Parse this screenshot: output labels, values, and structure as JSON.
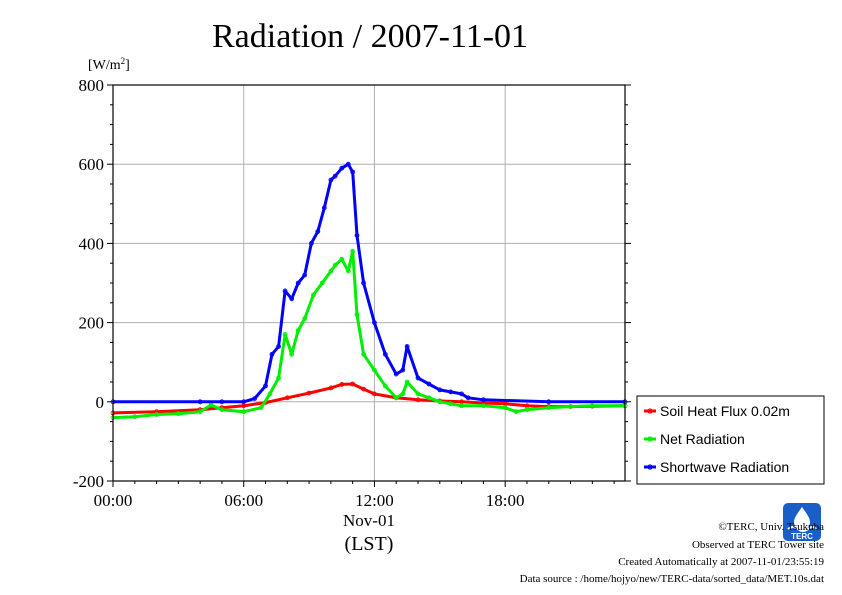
{
  "chart_data": {
    "type": "line",
    "title": "Radiation / 2007-11-01",
    "ylabel_unit": "[W/m",
    "ylabel_unit_sup": "2",
    "ylabel_unit_close": "]",
    "ylim": [
      -200,
      800
    ],
    "yticks": [
      "800",
      "600",
      "400",
      "200",
      "0",
      "-200"
    ],
    "xlim": [
      0,
      23.5
    ],
    "xticks": [
      "00:00",
      "06:00",
      "12:00",
      "18:00"
    ],
    "xlabel_date": "Nov-01",
    "xlabel": "(LST)",
    "grid": true,
    "legend_position": "right",
    "series": [
      {
        "name": "Soil Heat Flux 0.02m",
        "color": "#ff0000",
        "x": [
          0,
          2,
          4,
          5,
          6,
          7,
          8,
          9,
          10,
          10.5,
          11,
          11.5,
          12,
          13,
          14,
          15,
          16,
          17,
          18,
          19,
          20,
          21,
          22,
          23.5
        ],
        "y": [
          -28,
          -25,
          -20,
          -15,
          -10,
          -2,
          10,
          22,
          35,
          44,
          45,
          32,
          20,
          10,
          5,
          2,
          0,
          -3,
          -5,
          -10,
          -12,
          -12,
          -11,
          -10
        ]
      },
      {
        "name": "Net Radiation",
        "color": "#00ee00",
        "x": [
          0,
          1,
          2,
          3,
          4,
          4.5,
          5,
          6,
          6.8,
          7.2,
          7.6,
          7.9,
          8.2,
          8.5,
          8.8,
          9.2,
          9.6,
          10.0,
          10.2,
          10.5,
          10.8,
          11.0,
          11.2,
          11.5,
          12.0,
          12.5,
          13.0,
          13.3,
          13.5,
          14.0,
          14.5,
          15.0,
          15.5,
          16.0,
          17.0,
          18.0,
          18.5,
          19.0,
          20.0,
          21.0,
          22.0,
          23.5
        ],
        "y": [
          -40,
          -38,
          -32,
          -30,
          -25,
          -8,
          -20,
          -25,
          -15,
          20,
          60,
          170,
          120,
          180,
          210,
          270,
          300,
          330,
          345,
          360,
          330,
          380,
          220,
          120,
          80,
          40,
          10,
          20,
          50,
          20,
          10,
          0,
          -5,
          -10,
          -10,
          -15,
          -25,
          -20,
          -15,
          -12,
          -10,
          -10
        ]
      },
      {
        "name": "Shortwave Radiation",
        "color": "#0000ff",
        "x": [
          0,
          4,
          5,
          6,
          6.5,
          7.0,
          7.3,
          7.6,
          7.9,
          8.2,
          8.5,
          8.8,
          9.1,
          9.4,
          9.7,
          10.0,
          10.2,
          10.5,
          10.8,
          11.0,
          11.2,
          11.5,
          12.0,
          12.5,
          13.0,
          13.3,
          13.5,
          14.0,
          14.5,
          15.0,
          15.5,
          16.0,
          16.3,
          17.0,
          20.0,
          23.5
        ],
        "y": [
          0,
          0,
          0,
          0,
          8,
          40,
          120,
          140,
          280,
          260,
          300,
          320,
          400,
          430,
          490,
          560,
          570,
          590,
          600,
          580,
          420,
          300,
          200,
          120,
          70,
          80,
          140,
          60,
          45,
          30,
          25,
          20,
          10,
          5,
          0,
          0
        ]
      }
    ]
  },
  "credits": {
    "copyright": "©TERC, Univ. Tsukuba",
    "site": "Observed at TERC Tower site",
    "created": "Created Automatically at 2007-11-01/23:55:19",
    "source": "Data source : /home/hojyo/new/TERC-data/sorted_data/MET.10s.dat"
  },
  "logo": {
    "text": "TERC",
    "color": "#1a5fc8"
  }
}
